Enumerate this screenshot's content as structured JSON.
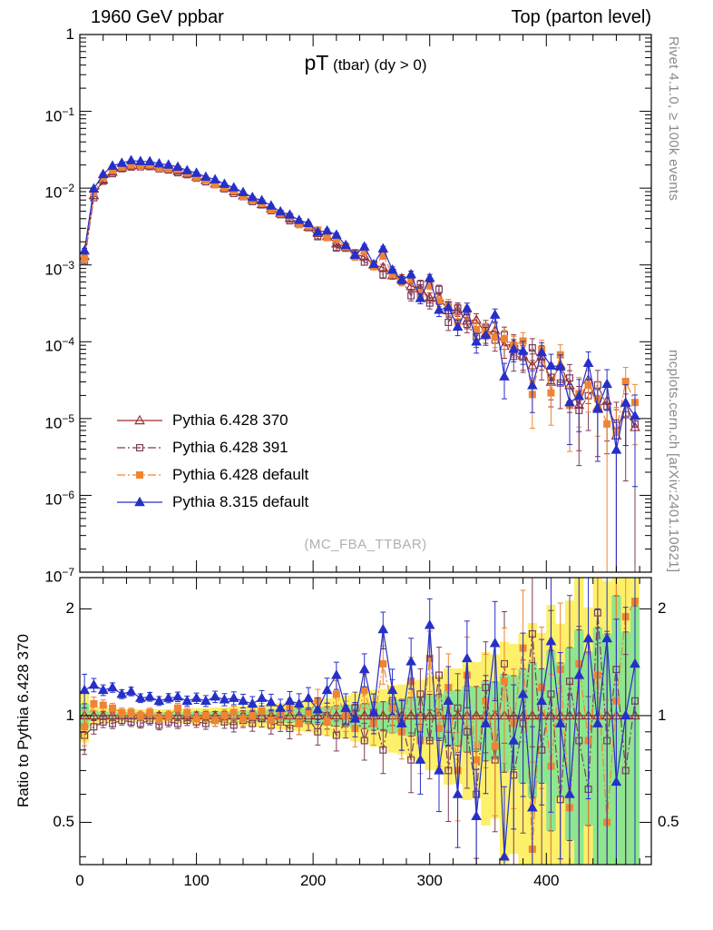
{
  "header": {
    "left": "1960 GeV ppbar",
    "right": "Top (parton level)"
  },
  "title": {
    "main": "pT",
    "suffix": " (tbar) (dy > 0)"
  },
  "watermark": "(MC_FBA_TTBAR)",
  "side_labels": {
    "top_right": "Rivet 4.1.0, ≥ 100k events",
    "bottom_right": "mcplots.cern.ch [arXiv:2401.10621]"
  },
  "ratio_axis_label": "Ratio to Pythia 6.428 370",
  "axes": {
    "x": {
      "min": 0,
      "max": 490,
      "major": [
        0,
        100,
        200,
        300,
        400
      ],
      "minor_step": 20
    },
    "y_main": {
      "type": "log",
      "min": 1e-07,
      "max": 1,
      "tick_exponents": [
        0,
        -1,
        -2,
        -3,
        -4,
        -5,
        -6,
        -7
      ]
    },
    "y_ratio": {
      "type": "log",
      "min": 0.38,
      "max": 2.45,
      "ticks": [
        2,
        1,
        0.5
      ],
      "tick_labels": [
        "2",
        "1",
        "0.5"
      ],
      "minor": [
        0.4,
        0.6,
        0.7,
        0.8,
        0.9
      ]
    }
  },
  "chart_data": {
    "type": "line",
    "title": "pT (tbar) (dy > 0)",
    "xlabel": "",
    "ylabel_ratio": "Ratio to Pythia 6.428 370",
    "xlim": [
      0,
      490
    ],
    "ylim_main": [
      1e-07,
      1
    ],
    "ylim_ratio": [
      0.38,
      2.45
    ],
    "legend_position": "lower-left",
    "grid": false,
    "bin_width": 8,
    "n_eff": 15000,
    "band_colors": {
      "inner": "#8ee68e",
      "outer": "#fdf06a"
    },
    "x": [
      4,
      12,
      20,
      28,
      36,
      44,
      52,
      60,
      68,
      76,
      84,
      92,
      100,
      108,
      116,
      124,
      132,
      140,
      148,
      156,
      164,
      172,
      180,
      188,
      196,
      204,
      212,
      220,
      228,
      236,
      244,
      252,
      260,
      268,
      276,
      284,
      292,
      300,
      308,
      316,
      324,
      332,
      340,
      348,
      356,
      364,
      372,
      380,
      388,
      396,
      404,
      412,
      420,
      428,
      436,
      444,
      452,
      460,
      468,
      476
    ],
    "series": [
      {
        "name": "Pythia 6.428 370",
        "color": "#9d2d2d",
        "marker": "triangle-open",
        "line": "solid",
        "is_ref": true,
        "values": [
          0.0013,
          0.00806,
          0.01283,
          0.01625,
          0.01845,
          0.0196,
          0.01993,
          0.01965,
          0.01897,
          0.01792,
          0.01671,
          0.01542,
          0.01405,
          0.01272,
          0.01143,
          0.01019,
          0.00907,
          0.008,
          0.00703,
          0.00617,
          0.00541,
          0.0047,
          0.00408,
          0.00354,
          0.00312,
          0.00259,
          0.00236,
          0.00189,
          0.00172,
          0.00137,
          0.00128,
          0.001,
          0.00093,
          0.00073,
          0.00067,
          0.00053,
          0.00049,
          0.000375,
          0.00037,
          0.000255,
          0.00026,
          0.000187,
          0.000192,
          0.000128,
          0.00014,
          8.8e-05,
          9.5e-05,
          6.6e-05,
          4.9e-05,
          6.6e-05,
          3e-05,
          5e-05,
          2.7e-05,
          1.5e-05,
          3.2e-05,
          1.4e-05,
          1.7e-05,
          6e-06,
          1.6e-05,
          7.7e-06
        ]
      },
      {
        "name": "Pythia 6.428 391",
        "color": "#7d3c5a",
        "marker": "square-open",
        "line": "dashdot",
        "ratio": [
          0.88,
          0.93,
          0.96,
          0.95,
          0.97,
          0.96,
          0.95,
          0.97,
          0.94,
          0.96,
          0.95,
          0.97,
          0.96,
          0.95,
          0.97,
          0.96,
          0.94,
          0.97,
          0.95,
          0.98,
          0.94,
          0.96,
          0.92,
          0.95,
          0.98,
          0.9,
          1.0,
          0.88,
          0.96,
          1.05,
          0.85,
          1.02,
          0.8,
          1.1,
          0.95,
          0.75,
          1.15,
          0.85,
          1.3,
          0.7,
          1.05,
          0.9,
          0.6,
          1.2,
          0.75,
          1.4,
          0.68,
          0.95,
          1.7,
          0.8,
          1.15,
          0.58,
          1.25,
          0.85,
          0.62,
          1.95,
          0.85,
          1.35,
          0.7,
          1.1
        ]
      },
      {
        "name": "Pythia 6.428 default",
        "color": "#ef8532",
        "marker": "square-filled",
        "line": "dashdot",
        "ratio": [
          0.93,
          1.08,
          1.07,
          1.05,
          1.02,
          1.02,
          1.0,
          1.02,
          0.98,
          1.0,
          1.05,
          1.02,
          0.98,
          1.0,
          0.97,
          1.0,
          1.02,
          0.98,
          1.0,
          1.03,
          0.97,
          1.0,
          1.05,
          0.95,
          1.02,
          1.1,
          0.96,
          1.15,
          1.0,
          0.92,
          1.18,
          0.95,
          1.4,
          1.05,
          0.9,
          1.25,
          0.85,
          1.45,
          0.92,
          1.2,
          0.7,
          1.3,
          0.75,
          1.1,
          0.82,
          1.25,
          0.95,
          1.55,
          0.42,
          1.2,
          0.72,
          1.35,
          0.55,
          1.4,
          0.85,
          1.3,
          0.5,
          1.1,
          1.9,
          2.1
        ]
      },
      {
        "name": "Pythia 8.315 default",
        "color": "#2630c8",
        "marker": "triangle-filled",
        "line": "solid",
        "ratio": [
          1.18,
          1.22,
          1.18,
          1.2,
          1.15,
          1.17,
          1.12,
          1.13,
          1.1,
          1.12,
          1.13,
          1.1,
          1.12,
          1.1,
          1.13,
          1.11,
          1.12,
          1.1,
          1.08,
          1.12,
          1.09,
          1.05,
          1.1,
          1.08,
          1.12,
          1.04,
          1.18,
          1.3,
          1.05,
          0.98,
          1.35,
          1.02,
          1.75,
          1.18,
          0.95,
          1.42,
          0.75,
          1.8,
          0.7,
          1.1,
          0.6,
          1.45,
          0.52,
          0.95,
          1.6,
          0.4,
          0.85,
          1.15,
          0.55,
          1.1,
          1.62,
          0.95,
          0.6,
          1.3,
          1.65,
          0.95,
          1.65,
          0.65,
          1.0,
          1.4
        ]
      }
    ]
  }
}
